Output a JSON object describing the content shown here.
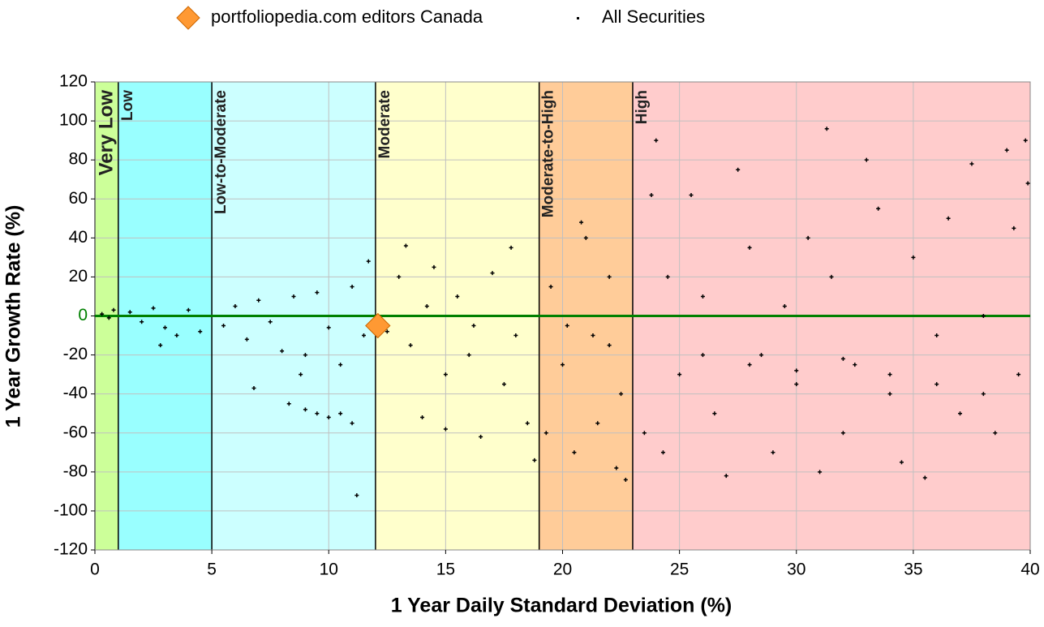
{
  "chart_data": {
    "type": "scatter",
    "x_label": "1 Year Daily Standard Deviation (%)",
    "y_label": "1 Year Growth Rate (%)",
    "xlim": [
      0,
      40
    ],
    "ylim": [
      -120,
      120
    ],
    "xticks": [
      0,
      5,
      10,
      15,
      20,
      25,
      30,
      35,
      40
    ],
    "yticks": [
      -120,
      -100,
      -80,
      -60,
      -40,
      -20,
      0,
      20,
      40,
      60,
      80,
      100,
      120
    ],
    "grid": true,
    "zero_line_color": "#008000",
    "bands": [
      {
        "label": "Very Low",
        "start": 0,
        "end": 1,
        "color": "#ccff99"
      },
      {
        "label": "Low",
        "start": 1,
        "end": 5,
        "color": "#99ffff"
      },
      {
        "label": "Low-to-Moderate",
        "start": 5,
        "end": 12,
        "color": "#ccffff"
      },
      {
        "label": "Moderate",
        "start": 12,
        "end": 19,
        "color": "#ffffcc"
      },
      {
        "label": "Moderate-to-High",
        "start": 19,
        "end": 23,
        "color": "#ffcc99"
      },
      {
        "label": "High",
        "start": 23,
        "end": 40,
        "color": "#ffcccc"
      }
    ],
    "series": [
      {
        "name": "portfoliopedia.com editors Canada",
        "color": "#ff9933",
        "marker": "diamond",
        "x": [
          12.1
        ],
        "values": [
          -5
        ]
      },
      {
        "name": "All Securities",
        "color": "#000000",
        "marker": "dot",
        "x": [
          0.3,
          0.6,
          0.8,
          1.5,
          2,
          2.5,
          3,
          3.5,
          4,
          4.5,
          2.8,
          5.5,
          6,
          6.5,
          7,
          7.5,
          8,
          8.5,
          9,
          9.5,
          10,
          10.5,
          11,
          11.5,
          11.7,
          8.3,
          9,
          9.5,
          10,
          10.5,
          11,
          11.2,
          6.8,
          8.8,
          12.5,
          13,
          13.3,
          13.5,
          14,
          14.5,
          15,
          15,
          15.5,
          16,
          16.5,
          17,
          17.5,
          17.8,
          18,
          18.5,
          18.8,
          14.2,
          16.2,
          19.3,
          19.5,
          20,
          20.5,
          20.8,
          21,
          21.3,
          21.5,
          22,
          22.3,
          22.5,
          22.7,
          20.2,
          22,
          23.5,
          23.8,
          24,
          24.3,
          24.5,
          25,
          25.5,
          26,
          26.5,
          27,
          27.5,
          28,
          28.5,
          29,
          29.5,
          30,
          30.5,
          31,
          31.3,
          31.5,
          32,
          32.5,
          33,
          33.5,
          34,
          34.5,
          35,
          35.5,
          36,
          36.5,
          37,
          37.5,
          38,
          38.5,
          39,
          39.3,
          39.5,
          39.8,
          39.9,
          26,
          28,
          30,
          32,
          34,
          36,
          38
        ],
        "values": [
          1,
          -1,
          3,
          2,
          -3,
          4,
          -6,
          -10,
          3,
          -8,
          -15,
          -5,
          5,
          -12,
          8,
          -3,
          -18,
          10,
          -20,
          12,
          -6,
          -25,
          15,
          -10,
          28,
          -45,
          -48,
          -50,
          -52,
          -50,
          -55,
          -92,
          -37,
          -30,
          -8,
          20,
          36,
          -15,
          -52,
          25,
          -30,
          -58,
          10,
          -20,
          -62,
          22,
          -35,
          35,
          -10,
          -55,
          -74,
          5,
          -5,
          -60,
          15,
          -25,
          -70,
          48,
          40,
          -10,
          -55,
          20,
          -78,
          -40,
          -84,
          -5,
          -15,
          -60,
          62,
          90,
          -70,
          20,
          -30,
          62,
          10,
          -50,
          -82,
          75,
          35,
          -20,
          -70,
          5,
          -35,
          40,
          -80,
          96,
          20,
          -60,
          -25,
          80,
          55,
          -40,
          -75,
          30,
          -83,
          -10,
          50,
          -50,
          78,
          0,
          -60,
          85,
          45,
          -30,
          90,
          68,
          -20,
          -25,
          -28,
          -22,
          -30,
          -35,
          -40
        ]
      }
    ]
  }
}
